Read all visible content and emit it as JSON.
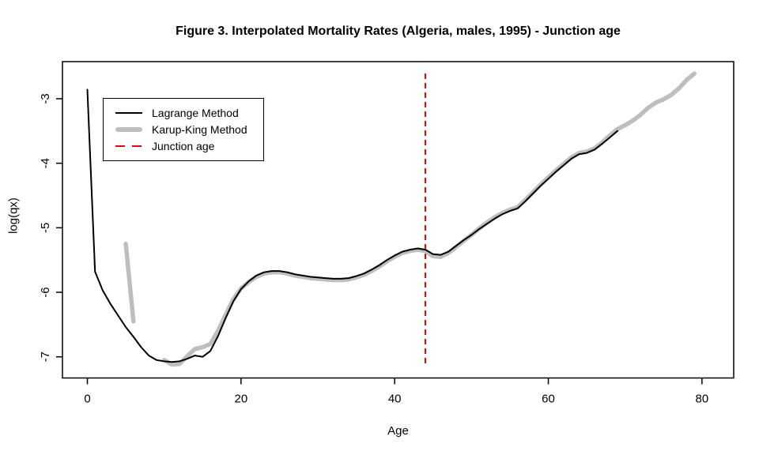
{
  "figure": {
    "title": "Figure 3. Interpolated Mortality Rates (Algeria, males, 1995) - Junction age",
    "x_axis_label": "Age",
    "y_axis_label": "log(qx)"
  },
  "chart_data": {
    "type": "line",
    "title": "Figure 3. Interpolated Mortality Rates (Algeria, males, 1995) - Junction age",
    "xlabel": "Age",
    "ylabel": "log(qx)",
    "x_ticks": [
      0,
      20,
      40,
      60,
      80
    ],
    "y_ticks": [
      -3,
      -4,
      -5,
      -6,
      -7
    ],
    "xlim": [
      -3.243,
      84.13
    ],
    "ylim": [
      -7.328,
      -2.425
    ],
    "grid": false,
    "legend_position": "top-left-inside",
    "junction": {
      "label": "Junction age",
      "age": 44,
      "color": "#E60000",
      "line_style": "dashed"
    },
    "legend": [
      {
        "label": "Lagrange Method",
        "style": "solid-thin",
        "color": "#000000"
      },
      {
        "label": "Karup-King Method",
        "style": "solid-thick",
        "color": "#BEBEBE"
      },
      {
        "label": "Junction age",
        "style": "dashed",
        "color": "#E60000"
      }
    ],
    "series": [
      {
        "name": "Karup-King Method",
        "color": "#BEBEBE",
        "width": 5.5,
        "points": [
          [
            10,
            -7.05
          ],
          [
            11,
            -7.12
          ],
          [
            12,
            -7.11
          ],
          [
            13,
            -6.99
          ],
          [
            14,
            -6.88
          ],
          [
            15,
            -6.85
          ],
          [
            16,
            -6.8
          ],
          [
            17,
            -6.6
          ],
          [
            18,
            -6.35
          ],
          [
            19,
            -6.11
          ],
          [
            20,
            -5.94
          ],
          [
            21,
            -5.84
          ],
          [
            22,
            -5.76
          ],
          [
            23,
            -5.71
          ],
          [
            24,
            -5.69
          ],
          [
            25,
            -5.69
          ],
          [
            26,
            -5.71
          ],
          [
            27,
            -5.74
          ],
          [
            28,
            -5.76
          ],
          [
            29,
            -5.78
          ],
          [
            30,
            -5.79
          ],
          [
            31,
            -5.8
          ],
          [
            32,
            -5.81
          ],
          [
            33,
            -5.81
          ],
          [
            34,
            -5.8
          ],
          [
            35,
            -5.77
          ],
          [
            36,
            -5.73
          ],
          [
            37,
            -5.67
          ],
          [
            38,
            -5.6
          ],
          [
            39,
            -5.52
          ],
          [
            40,
            -5.45
          ],
          [
            41,
            -5.39
          ],
          [
            42,
            -5.36
          ],
          [
            43,
            -5.34
          ],
          [
            44,
            -5.36
          ],
          [
            45,
            -5.44
          ],
          [
            46,
            -5.45
          ],
          [
            47,
            -5.39
          ],
          [
            48,
            -5.3
          ],
          [
            49,
            -5.2
          ],
          [
            50,
            -5.11
          ],
          [
            51,
            -5.01
          ],
          [
            52,
            -4.92
          ],
          [
            53,
            -4.84
          ],
          [
            54,
            -4.77
          ],
          [
            55,
            -4.72
          ],
          [
            56,
            -4.68
          ],
          [
            57,
            -4.57
          ],
          [
            58,
            -4.45
          ],
          [
            59,
            -4.33
          ],
          [
            60,
            -4.22
          ],
          [
            61,
            -4.11
          ],
          [
            62,
            -4.01
          ],
          [
            63,
            -3.91
          ],
          [
            64,
            -3.84
          ],
          [
            65,
            -3.82
          ],
          [
            66,
            -3.77
          ],
          [
            67,
            -3.68
          ],
          [
            68,
            -3.57
          ],
          [
            69,
            -3.47
          ],
          [
            70,
            -3.41
          ],
          [
            71,
            -3.34
          ],
          [
            72,
            -3.25
          ],
          [
            73,
            -3.14
          ],
          [
            74,
            -3.06
          ],
          [
            75,
            -3.01
          ],
          [
            76,
            -2.94
          ],
          [
            77,
            -2.84
          ],
          [
            78,
            -2.71
          ],
          [
            79,
            -2.61
          ]
        ]
      },
      {
        "name": "Karup-King Method (early segment, ages 5-6)",
        "color": "#BEBEBE",
        "width": 5.5,
        "points": [
          [
            5,
            -5.25
          ],
          [
            6,
            -6.45
          ]
        ]
      },
      {
        "name": "Lagrange Method",
        "color": "#000000",
        "width": 2,
        "points": [
          [
            0,
            -2.86
          ],
          [
            1,
            -5.68
          ],
          [
            2,
            -5.97
          ],
          [
            3,
            -6.18
          ],
          [
            4,
            -6.36
          ],
          [
            5,
            -6.54
          ],
          [
            6,
            -6.69
          ],
          [
            7,
            -6.85
          ],
          [
            8,
            -6.98
          ],
          [
            9,
            -7.05
          ],
          [
            10,
            -7.07
          ],
          [
            11,
            -7.08
          ],
          [
            12,
            -7.07
          ],
          [
            13,
            -7.03
          ],
          [
            14,
            -6.98
          ],
          [
            15,
            -7.0
          ],
          [
            16,
            -6.91
          ],
          [
            17,
            -6.68
          ],
          [
            18,
            -6.4
          ],
          [
            19,
            -6.14
          ],
          [
            20,
            -5.95
          ],
          [
            21,
            -5.83
          ],
          [
            22,
            -5.74
          ],
          [
            23,
            -5.69
          ],
          [
            24,
            -5.67
          ],
          [
            25,
            -5.67
          ],
          [
            26,
            -5.69
          ],
          [
            27,
            -5.72
          ],
          [
            28,
            -5.74
          ],
          [
            29,
            -5.76
          ],
          [
            30,
            -5.77
          ],
          [
            31,
            -5.78
          ],
          [
            32,
            -5.79
          ],
          [
            33,
            -5.79
          ],
          [
            34,
            -5.78
          ],
          [
            35,
            -5.75
          ],
          [
            36,
            -5.71
          ],
          [
            37,
            -5.65
          ],
          [
            38,
            -5.58
          ],
          [
            39,
            -5.5
          ],
          [
            40,
            -5.43
          ],
          [
            41,
            -5.37
          ],
          [
            42,
            -5.34
          ],
          [
            43,
            -5.32
          ],
          [
            44,
            -5.34
          ],
          [
            45,
            -5.41
          ],
          [
            46,
            -5.42
          ],
          [
            47,
            -5.37
          ],
          [
            48,
            -5.28
          ],
          [
            49,
            -5.19
          ],
          [
            50,
            -5.11
          ],
          [
            51,
            -5.02
          ],
          [
            52,
            -4.94
          ],
          [
            53,
            -4.86
          ],
          [
            54,
            -4.79
          ],
          [
            55,
            -4.74
          ],
          [
            56,
            -4.7
          ],
          [
            57,
            -4.59
          ],
          [
            58,
            -4.47
          ],
          [
            59,
            -4.35
          ],
          [
            60,
            -4.24
          ],
          [
            61,
            -4.13
          ],
          [
            62,
            -4.03
          ],
          [
            63,
            -3.93
          ],
          [
            64,
            -3.86
          ],
          [
            65,
            -3.84
          ],
          [
            66,
            -3.79
          ],
          [
            67,
            -3.7
          ],
          [
            68,
            -3.6
          ],
          [
            69,
            -3.5
          ]
        ]
      }
    ]
  }
}
